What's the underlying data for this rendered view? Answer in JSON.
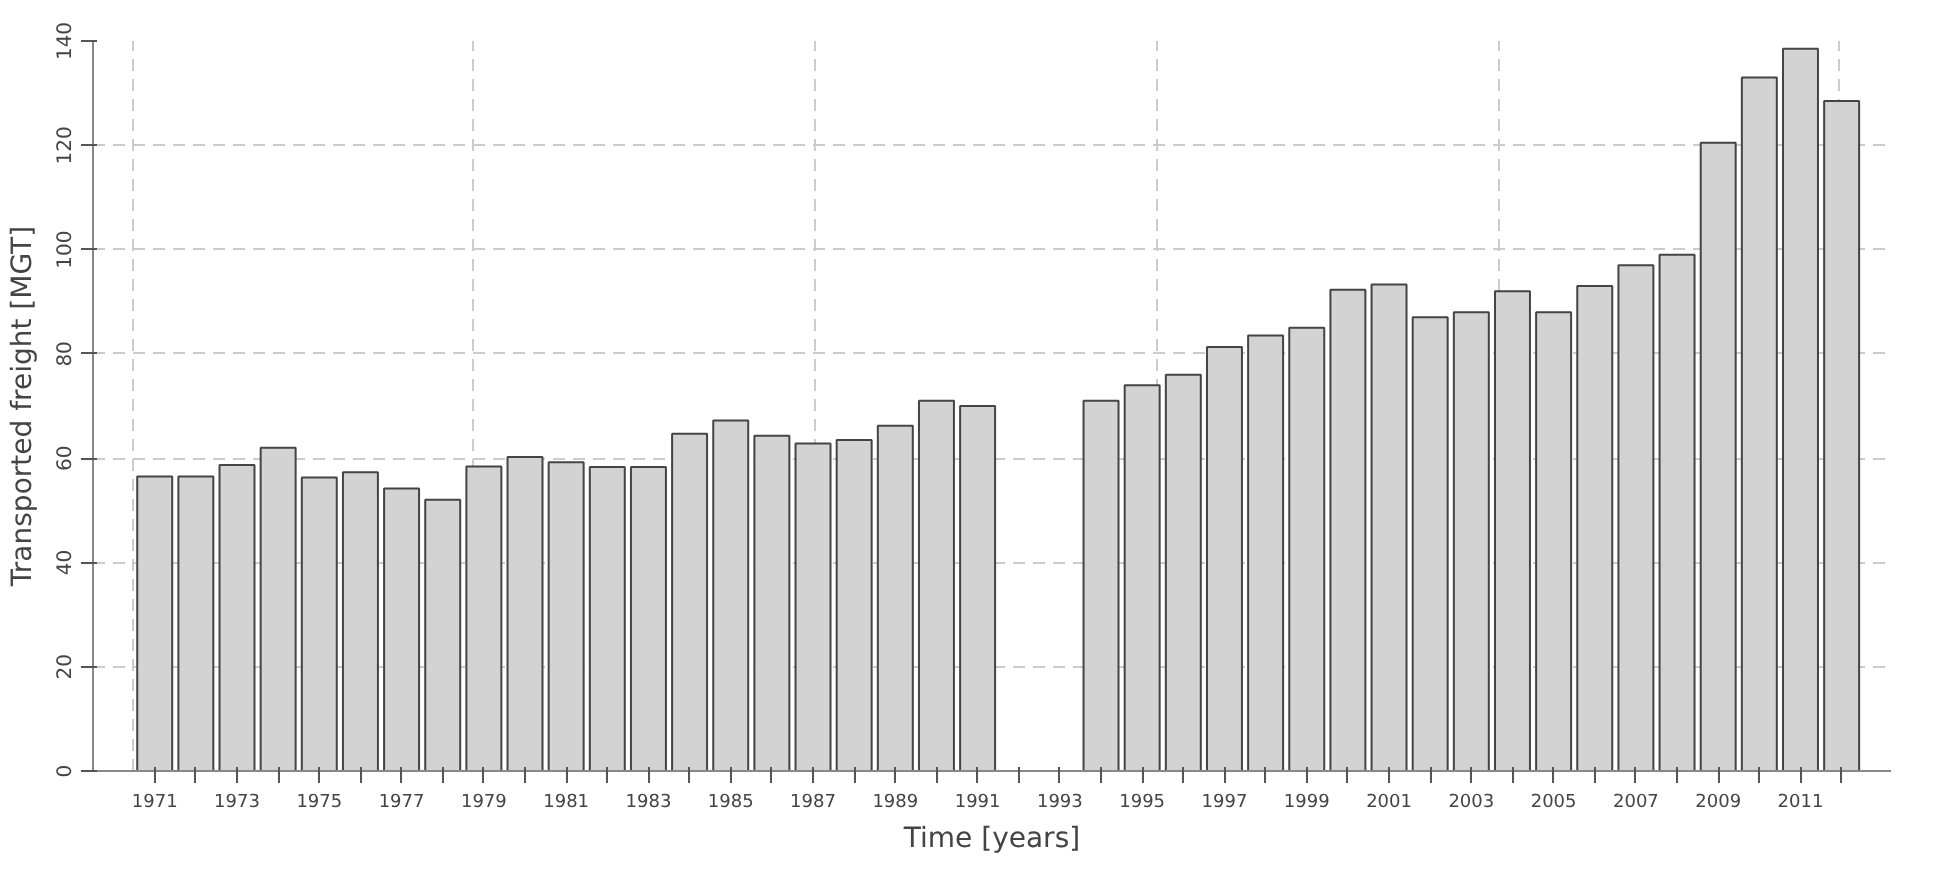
{
  "chart_data": {
    "type": "bar",
    "xlabel": "Time [years]",
    "ylabel": "Transported freight [MGT]",
    "categories": [
      "1971",
      null,
      "1973",
      null,
      "1975",
      null,
      "1977",
      null,
      "1979",
      null,
      "1981",
      null,
      "1983",
      null,
      "1985",
      null,
      "1987",
      null,
      "1989",
      null,
      "1991",
      null,
      "1993",
      null,
      "1995",
      null,
      "1997",
      null,
      "1999",
      null,
      "2001",
      null,
      "2003",
      null,
      "2005",
      null,
      "2007",
      null,
      "2009",
      null,
      "2011",
      null
    ],
    "values": [
      56.5,
      56.5,
      58.7,
      62,
      56.3,
      57.3,
      54.2,
      52,
      58.4,
      60.2,
      59.2,
      58.3,
      58.3,
      64.7,
      67.2,
      64.3,
      62.8,
      63.5,
      66.2,
      71,
      70,
      null,
      null,
      71,
      74,
      76,
      81.3,
      83.5,
      85,
      92.3,
      93.3,
      87,
      88,
      92,
      88,
      93,
      97,
      99,
      120.5,
      133,
      138.5,
      128.5
    ],
    "color": "#d3d3d3",
    "ylim": [
      0,
      140
    ],
    "yticks": [
      0,
      20,
      40,
      60,
      80,
      100,
      120,
      140
    ],
    "grid": true
  }
}
